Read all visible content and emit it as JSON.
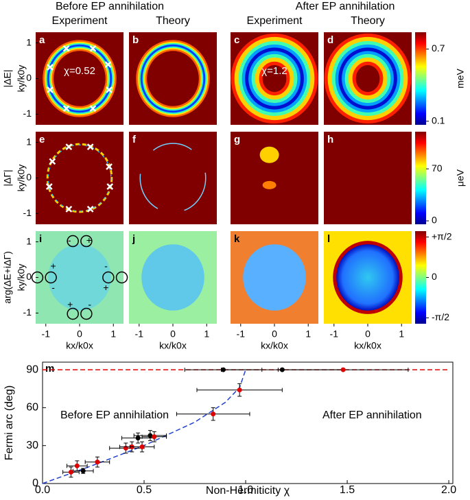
{
  "headers": [
    "Before EP annihilation",
    "After EP annihilation"
  ],
  "columns": [
    "Experiment",
    "Theory",
    "Experiment",
    "Theory"
  ],
  "panels": [
    "a",
    "b",
    "c",
    "d",
    "e",
    "f",
    "g",
    "h",
    "i",
    "j",
    "k",
    "l"
  ],
  "rows": [
    "|ΔE|",
    "|ΔΓ|",
    "arg(ΔE+iΔΓ)"
  ],
  "map_ylabel": "ky/k0y",
  "map_xlabel": "kx/k0x",
  "map_lim": [
    -1.3,
    1.3
  ],
  "map_ticks": [
    -1,
    0,
    1
  ],
  "annotations": [
    "χ=0.52",
    "χ=1.2"
  ],
  "signs": [
    "-",
    "+",
    "+",
    "-",
    "-",
    "+",
    "+",
    "-"
  ],
  "colorbars": [
    {
      "label": "meV",
      "lim": [
        0.07,
        0.84
      ],
      "ticks": [
        0.7,
        0.1
      ]
    },
    {
      "label": "μeV",
      "lim": [
        -4.6,
        120
      ],
      "ticks": [
        70,
        0
      ]
    },
    {
      "lim": [
        -1.8,
        1.8
      ],
      "ticks": [
        {
          "value": 1.571,
          "label": "+π/2"
        },
        0,
        {
          "value": -1.571,
          "label": "-π/2"
        }
      ]
    }
  ],
  "chart_data": {
    "type": "scatter",
    "panel": "m",
    "xlabel": "Non-Hermiticity χ",
    "ylabel": "Fermi arc (deg)",
    "annotations": [
      "Before EP annihilation",
      "After EP annihilation"
    ],
    "xlim": [
      0,
      2.02
    ],
    "ylim": [
      0,
      96
    ],
    "xticks": [
      {
        "value": 0,
        "label": "0.0"
      },
      {
        "value": 0.5,
        "label": "0.5"
      },
      {
        "value": 1,
        "label": "1.0"
      },
      {
        "value": 1.5,
        "label": "1.5"
      },
      {
        "value": 2,
        "label": "2.0"
      }
    ],
    "yticks": [
      0,
      30,
      60,
      90
    ],
    "series": [
      {
        "type": "line",
        "color": "#e00000",
        "dash": true,
        "x": [
          0,
          2
        ],
        "values": [
          90,
          90
        ]
      },
      {
        "type": "line",
        "color": "#1f3fd0",
        "dash": true,
        "x": [
          0,
          0.25,
          0.5,
          0.75,
          0.9,
          0.97,
          1.0
        ],
        "values": [
          0,
          14.5,
          30,
          48.6,
          64.2,
          75.9,
          90
        ]
      },
      {
        "type": "scatter",
        "color": "#000000",
        "x": [
          0.2,
          0.47,
          0.53,
          0.89,
          1.18
        ],
        "values": [
          10,
          36,
          38,
          90,
          90
        ],
        "x_err": [
          0.05,
          0.08,
          0.08,
          0.19,
          0.3
        ],
        "y_err": [
          2,
          4,
          4,
          0,
          0
        ]
      },
      {
        "type": "scatter",
        "color": "#e00000",
        "x": [
          0.14,
          0.17,
          0.27,
          0.41,
          0.44,
          0.49,
          0.55,
          0.84,
          0.97,
          1.48
        ],
        "values": [
          9,
          14,
          17,
          28,
          29,
          29,
          37,
          55,
          74,
          90
        ],
        "x_err": [
          0.04,
          0.05,
          0.06,
          0.08,
          0.06,
          0.06,
          0.06,
          0.18,
          0.21,
          0.32
        ],
        "y_err": [
          4,
          4,
          4,
          4,
          4,
          4,
          4,
          5,
          5,
          0
        ]
      }
    ]
  }
}
